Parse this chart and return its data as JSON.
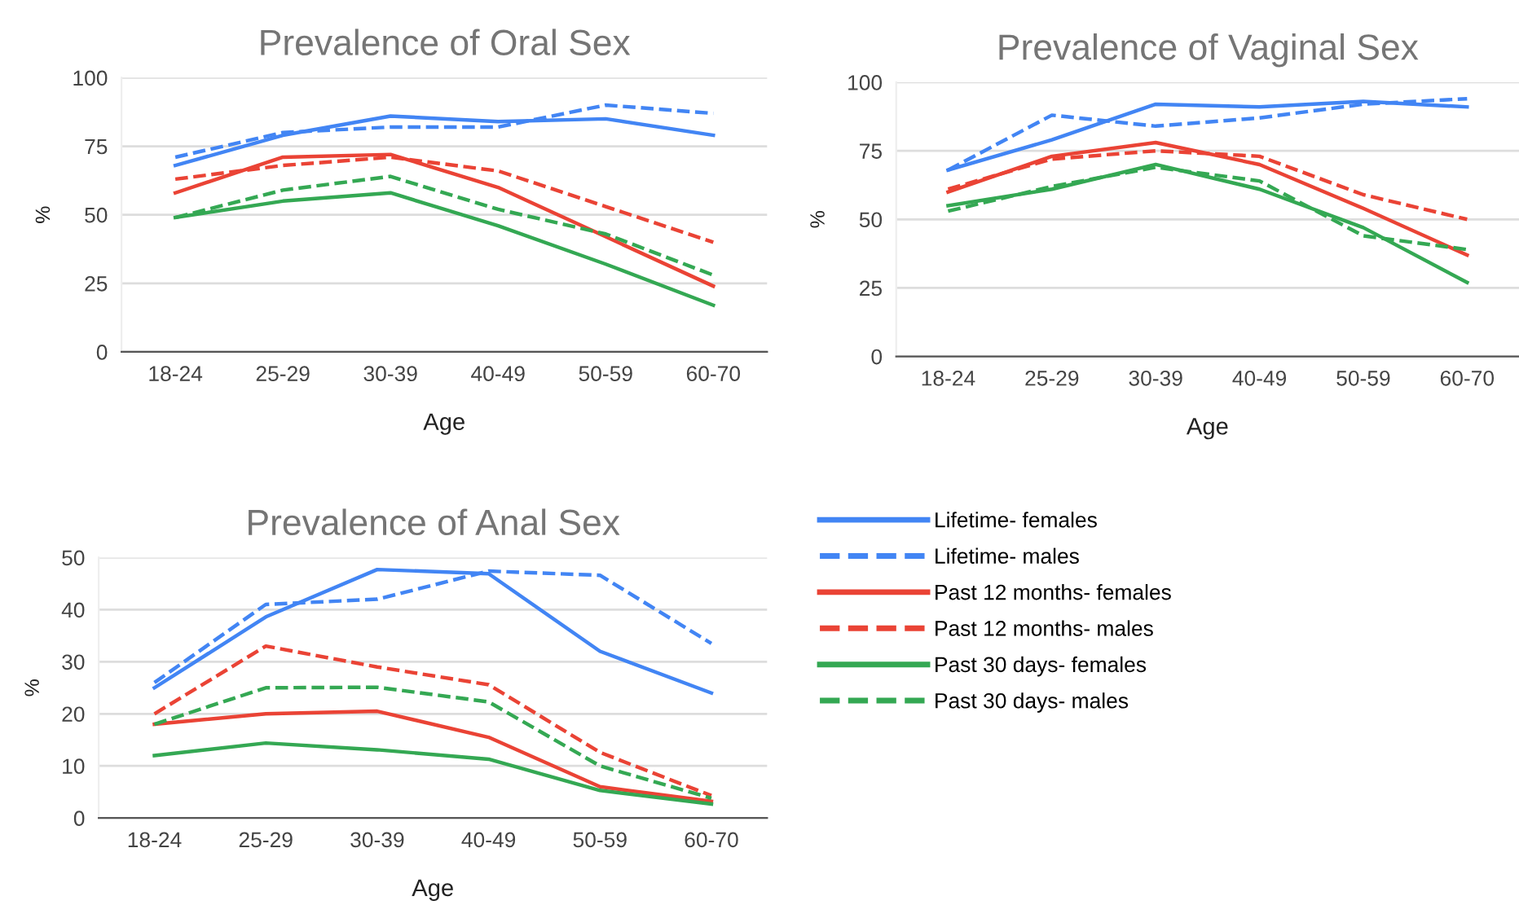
{
  "chart_data": [
    {
      "type": "line",
      "title": "Prevalence of Oral Sex",
      "xlabel": "Age",
      "ylabel": "%",
      "categories": [
        "18-24",
        "25-29",
        "30-39",
        "40-49",
        "50-59",
        "60-70"
      ],
      "ylim": [
        0,
        100
      ],
      "yticks": [
        0,
        25,
        50,
        75,
        100
      ],
      "grid": "y",
      "series": [
        {
          "color": "#4285f4",
          "line_style": "solid",
          "values": [
            68,
            79,
            86,
            84,
            85,
            79
          ]
        },
        {
          "color": "#4285f4",
          "line_style": "dashed",
          "values": [
            71,
            80,
            82,
            82,
            90,
            87
          ]
        },
        {
          "color": "#ea4335",
          "line_style": "solid",
          "values": [
            58,
            71,
            72,
            60,
            42,
            24
          ]
        },
        {
          "color": "#ea4335",
          "line_style": "dashed",
          "values": [
            63,
            68,
            71,
            66,
            53,
            40
          ]
        },
        {
          "color": "#34a853",
          "line_style": "solid",
          "values": [
            49,
            55,
            58,
            46,
            32,
            17
          ]
        },
        {
          "color": "#34a853",
          "line_style": "dashed",
          "values": [
            49,
            59,
            64,
            52,
            43,
            28
          ]
        }
      ]
    },
    {
      "type": "line",
      "title": "Prevalence of Vaginal Sex",
      "xlabel": "Age",
      "ylabel": "%",
      "categories": [
        "18-24",
        "25-29",
        "30-39",
        "40-49",
        "50-59",
        "60-70"
      ],
      "ylim": [
        0,
        100
      ],
      "yticks": [
        0,
        25,
        50,
        75,
        100
      ],
      "grid": "y",
      "series": [
        {
          "color": "#4285f4",
          "line_style": "solid",
          "values": [
            68,
            79,
            92,
            91,
            93,
            91
          ]
        },
        {
          "color": "#4285f4",
          "line_style": "dashed",
          "values": [
            68,
            88,
            84,
            87,
            92,
            94
          ]
        },
        {
          "color": "#ea4335",
          "line_style": "solid",
          "values": [
            60,
            73,
            78,
            70,
            54,
            37
          ]
        },
        {
          "color": "#ea4335",
          "line_style": "dashed",
          "values": [
            61,
            72,
            75,
            73,
            59,
            50
          ]
        },
        {
          "color": "#34a853",
          "line_style": "solid",
          "values": [
            55,
            61,
            70,
            61,
            47,
            27
          ]
        },
        {
          "color": "#34a853",
          "line_style": "dashed",
          "values": [
            53,
            62,
            69,
            64,
            44,
            39
          ]
        }
      ]
    },
    {
      "type": "line",
      "title": "Prevalence of Anal Sex",
      "xlabel": "Age",
      "ylabel": "%",
      "categories": [
        "18-24",
        "25-29",
        "30-39",
        "40-49",
        "50-59",
        "60-70"
      ],
      "ylim": [
        0,
        50
      ],
      "yticks": [
        0,
        10,
        20,
        30,
        40,
        50
      ],
      "grid": "y",
      "legend": "right",
      "series": [
        {
          "name": "Lifetime- females",
          "color": "#4285f4",
          "line_style": "solid",
          "values": [
            25,
            38.6,
            47.7,
            46.9,
            32,
            24
          ]
        },
        {
          "name": "Lifetime- males",
          "color": "#4285f4",
          "line_style": "dashed",
          "values": [
            26,
            41,
            42,
            47.4,
            46.6,
            33.5
          ]
        },
        {
          "name": "Past 12 months- females",
          "color": "#ea4335",
          "line_style": "solid",
          "values": [
            18,
            20,
            20.5,
            15.5,
            6,
            3.2
          ]
        },
        {
          "name": "Past 12 months- males",
          "color": "#ea4335",
          "line_style": "dashed",
          "values": [
            20,
            33,
            29,
            25.6,
            12.6,
            4.3
          ]
        },
        {
          "name": "Past 30 days- females",
          "color": "#34a853",
          "line_style": "solid",
          "values": [
            12,
            14.4,
            13.1,
            11.3,
            5.3,
            2.7
          ]
        },
        {
          "name": "Past 30 days- males",
          "color": "#34a853",
          "line_style": "dashed",
          "values": [
            18,
            25,
            25.1,
            22.3,
            10,
            3.8
          ]
        }
      ]
    }
  ]
}
